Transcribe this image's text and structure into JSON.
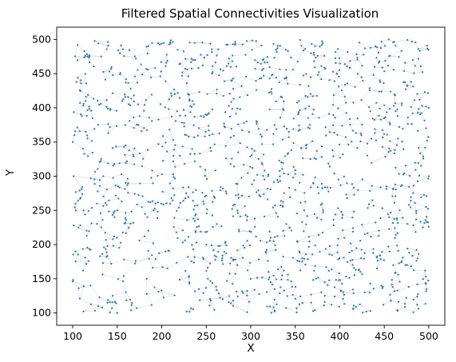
{
  "chart_data": {
    "type": "scatter",
    "title": "Filtered Spatial Connectivities Visualization",
    "xlabel": "X",
    "ylabel": "Y",
    "xlim": [
      82,
      518
    ],
    "ylim": [
      82,
      518
    ],
    "xticks": [
      100,
      150,
      200,
      250,
      300,
      350,
      400,
      450,
      500
    ],
    "yticks": [
      100,
      150,
      200,
      250,
      300,
      350,
      400,
      450,
      500
    ],
    "grid": false,
    "point_color": "#1f77b4",
    "edge_color": "#c8c8c8",
    "point_count": 1500,
    "x_range_of_points": [
      100,
      500
    ],
    "y_range_of_points": [
      100,
      500
    ],
    "series": [
      {
        "points_sample": [
          [
            100,
            146
          ],
          [
            108,
            121
          ],
          [
            112,
            102
          ],
          [
            120,
            140
          ],
          [
            133,
            108
          ],
          [
            150,
            100
          ],
          [
            172,
            107
          ],
          [
            183,
            150
          ],
          [
            228,
            102
          ],
          [
            255,
            118
          ],
          [
            296,
            101
          ],
          [
            372,
            104
          ],
          [
            430,
            102
          ],
          [
            465,
            103
          ],
          [
            487,
            112
          ],
          [
            113,
            483
          ],
          [
            140,
            491
          ],
          [
            200,
            494
          ],
          [
            237,
            495
          ],
          [
            280,
            493
          ],
          [
            330,
            487
          ],
          [
            380,
            492
          ],
          [
            440,
            490
          ],
          [
            460,
            496
          ],
          [
            498,
            491
          ],
          [
            500,
            400
          ],
          [
            498,
            352
          ],
          [
            500,
            300
          ],
          [
            497,
            255
          ],
          [
            500,
            226
          ],
          [
            100,
            350
          ],
          [
            101,
            300
          ],
          [
            103,
            260
          ],
          [
            101,
            228
          ],
          [
            103,
            190
          ],
          [
            150,
            250
          ],
          [
            147,
            240
          ],
          [
            155,
            263
          ],
          [
            138,
            258
          ],
          [
            160,
            236
          ],
          [
            250,
            200
          ],
          [
            268,
            180
          ],
          [
            285,
            170
          ],
          [
            300,
            150
          ],
          [
            320,
            160
          ],
          [
            350,
            280
          ],
          [
            360,
            250
          ],
          [
            370,
            290
          ],
          [
            380,
            260
          ],
          [
            340,
            230
          ]
        ]
      }
    ]
  }
}
